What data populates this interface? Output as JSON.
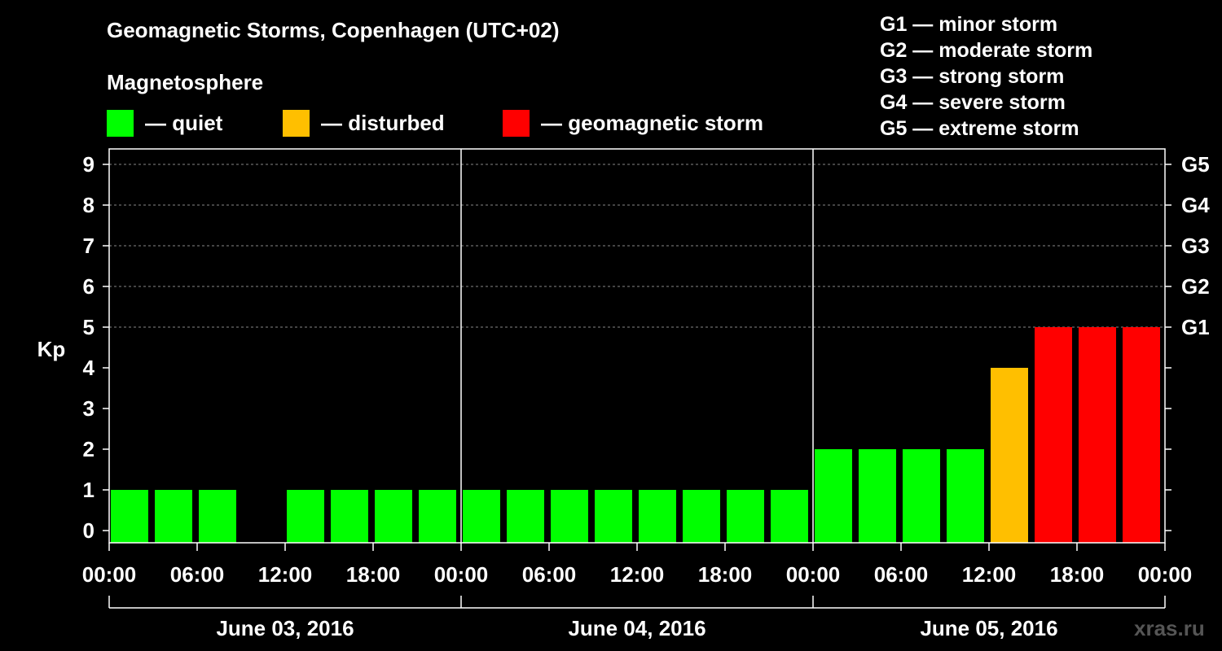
{
  "chart_data": {
    "type": "bar",
    "title": "Geomagnetic Storms, Copenhagen (UTC+02)",
    "subtitle": "Magnetosphere",
    "ylabel": "Kp",
    "ylim": [
      0,
      9
    ],
    "yticks": [
      "0",
      "1",
      "2",
      "3",
      "4",
      "5",
      "6",
      "7",
      "8",
      "9"
    ],
    "right_ticks": [
      {
        "kp": 5,
        "label": "G1"
      },
      {
        "kp": 6,
        "label": "G2"
      },
      {
        "kp": 7,
        "label": "G3"
      },
      {
        "kp": 8,
        "label": "G4"
      },
      {
        "kp": 9,
        "label": "G5"
      }
    ],
    "x_tick_labels": [
      "00:00",
      "06:00",
      "12:00",
      "18:00",
      "00:00",
      "06:00",
      "12:00",
      "18:00",
      "00:00",
      "06:00",
      "12:00",
      "18:00",
      "00:00"
    ],
    "x_range_hours": [
      0,
      72
    ],
    "days": [
      {
        "label": "June 03, 2016",
        "start_hour": 0,
        "end_hour": 24
      },
      {
        "label": "June 04, 2016",
        "start_hour": 24,
        "end_hour": 48
      },
      {
        "label": "June 05, 2016",
        "start_hour": 48,
        "end_hour": 72
      }
    ],
    "bar_hours_start": [
      0,
      3,
      6,
      9,
      12,
      15,
      18,
      21,
      24,
      27,
      30,
      33,
      36,
      39,
      42,
      45,
      48,
      51,
      54,
      57,
      60,
      63,
      66,
      69
    ],
    "values": [
      1,
      1,
      1,
      0,
      1,
      1,
      1,
      1,
      1,
      1,
      1,
      1,
      1,
      1,
      1,
      1,
      2,
      2,
      2,
      2,
      4,
      5,
      5,
      5
    ],
    "categories": [
      "quiet",
      "quiet",
      "quiet",
      "quiet",
      "quiet",
      "quiet",
      "quiet",
      "quiet",
      "quiet",
      "quiet",
      "quiet",
      "quiet",
      "quiet",
      "quiet",
      "quiet",
      "quiet",
      "quiet",
      "quiet",
      "quiet",
      "quiet",
      "disturbed",
      "storm",
      "storm",
      "storm"
    ]
  },
  "legend": [
    {
      "key": "quiet",
      "label": "— quiet",
      "color": "#00ff00"
    },
    {
      "key": "disturbed",
      "label": "— disturbed",
      "color": "#ffbf00"
    },
    {
      "key": "storm",
      "label": "— geomagnetic storm",
      "color": "#ff0000"
    }
  ],
  "storm_scale": [
    "G1 — minor storm",
    "G2 — moderate storm",
    "G3 — strong storm",
    "G4 — severe storm",
    "G5 — extreme storm"
  ],
  "watermark": "xras.ru"
}
